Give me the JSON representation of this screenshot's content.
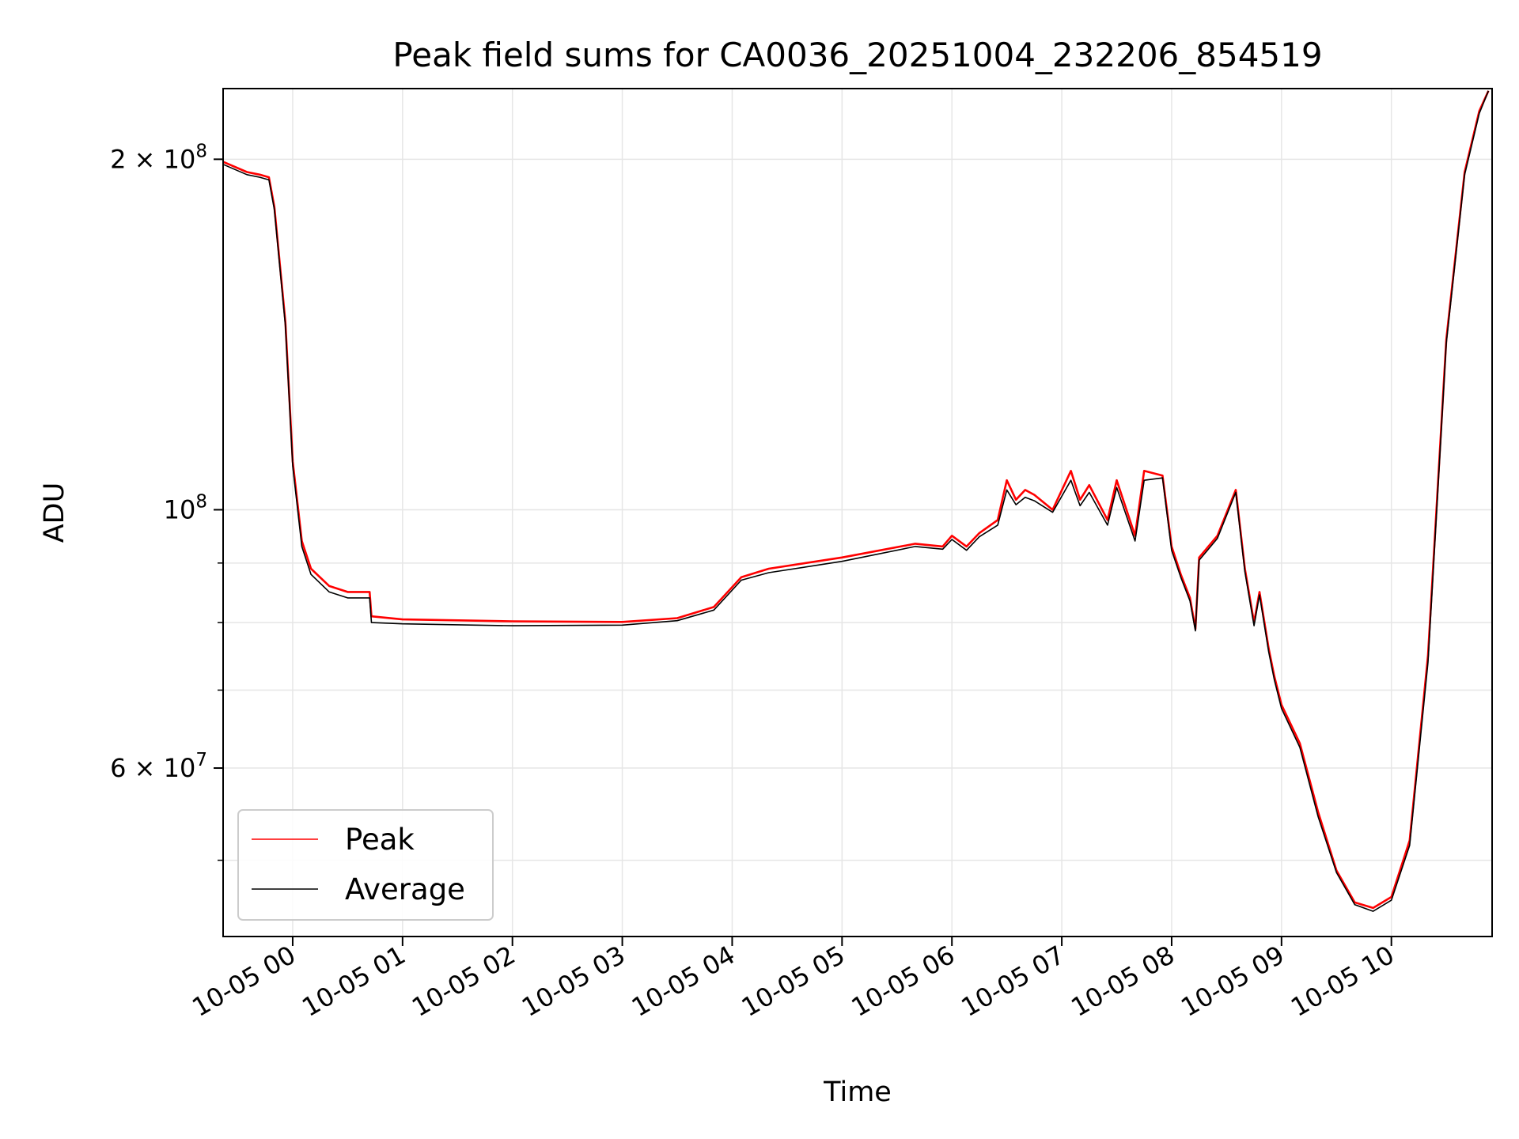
{
  "chart_data": {
    "type": "line",
    "title": "Peak field sums for CA0036_20251004_232206_854519",
    "xlabel": "Time",
    "ylabel": "ADU",
    "yscale": "log",
    "grid": true,
    "legend_position": "bottom-left",
    "xlim": [
      "2025-10-04T23:22",
      "2025-10-05T10:55"
    ],
    "ylim": [
      43000000,
      230000000
    ],
    "x_ticks": [
      {
        "t": "2025-10-05T00:00",
        "label": "10-05 00"
      },
      {
        "t": "2025-10-05T01:00",
        "label": "10-05 01"
      },
      {
        "t": "2025-10-05T02:00",
        "label": "10-05 02"
      },
      {
        "t": "2025-10-05T03:00",
        "label": "10-05 03"
      },
      {
        "t": "2025-10-05T04:00",
        "label": "10-05 04"
      },
      {
        "t": "2025-10-05T05:00",
        "label": "10-05 05"
      },
      {
        "t": "2025-10-05T06:00",
        "label": "10-05 06"
      },
      {
        "t": "2025-10-05T07:00",
        "label": "10-05 07"
      },
      {
        "t": "2025-10-05T08:00",
        "label": "10-05 08"
      },
      {
        "t": "2025-10-05T09:00",
        "label": "10-05 09"
      },
      {
        "t": "2025-10-05T10:00",
        "label": "10-05 10"
      }
    ],
    "y_major_ticks": [
      {
        "value": 200000000,
        "mant": "2",
        "exp": "8"
      },
      {
        "value": 100000000,
        "mant": "",
        "exp": "8"
      },
      {
        "value": 60000000,
        "mant": "6",
        "exp": "7"
      }
    ],
    "y_minor_ticks": [
      50000000,
      70000000,
      80000000,
      90000000
    ],
    "series": [
      {
        "name": "Peak",
        "color": "#ff0000",
        "x": [
          "2025-10-04T23:22",
          "2025-10-04T23:35",
          "2025-10-04T23:42",
          "2025-10-04T23:47",
          "2025-10-04T23:50",
          "2025-10-04T23:56",
          "2025-10-05T00:00",
          "2025-10-05T00:05",
          "2025-10-05T00:10",
          "2025-10-05T00:20",
          "2025-10-05T00:30",
          "2025-10-05T00:42",
          "2025-10-05T00:43",
          "2025-10-05T01:00",
          "2025-10-05T02:00",
          "2025-10-05T03:00",
          "2025-10-05T03:30",
          "2025-10-05T03:50",
          "2025-10-05T04:05",
          "2025-10-05T04:20",
          "2025-10-05T05:00",
          "2025-10-05T05:40",
          "2025-10-05T05:55",
          "2025-10-05T06:00",
          "2025-10-05T06:08",
          "2025-10-05T06:15",
          "2025-10-05T06:25",
          "2025-10-05T06:30",
          "2025-10-05T06:35",
          "2025-10-05T06:40",
          "2025-10-05T06:45",
          "2025-10-05T06:55",
          "2025-10-05T07:05",
          "2025-10-05T07:10",
          "2025-10-05T07:15",
          "2025-10-05T07:25",
          "2025-10-05T07:30",
          "2025-10-05T07:40",
          "2025-10-05T07:45",
          "2025-10-05T07:55",
          "2025-10-05T08:00",
          "2025-10-05T08:05",
          "2025-10-05T08:10",
          "2025-10-05T08:13",
          "2025-10-05T08:15",
          "2025-10-05T08:25",
          "2025-10-05T08:35",
          "2025-10-05T08:40",
          "2025-10-05T08:45",
          "2025-10-05T08:48",
          "2025-10-05T08:53",
          "2025-10-05T08:56",
          "2025-10-05T09:00",
          "2025-10-05T09:10",
          "2025-10-05T09:20",
          "2025-10-05T09:30",
          "2025-10-05T09:40",
          "2025-10-05T09:50",
          "2025-10-05T10:00",
          "2025-10-05T10:10",
          "2025-10-05T10:20",
          "2025-10-05T10:30",
          "2025-10-05T10:40",
          "2025-10-05T10:48",
          "2025-10-05T10:53"
        ],
        "y": [
          199000000,
          195000000,
          194000000,
          193000000,
          182000000,
          145000000,
          110000000,
          94000000,
          89000000,
          86000000,
          85000000,
          85000000,
          81000000,
          80500000,
          80200000,
          80100000,
          80700000,
          82500000,
          87500000,
          89000000,
          91000000,
          93500000,
          93000000,
          95000000,
          93000000,
          95500000,
          98000000,
          106000000,
          102000000,
          104000000,
          103000000,
          100000000,
          108000000,
          102000000,
          105000000,
          98000000,
          106000000,
          95000000,
          108000000,
          107000000,
          93000000,
          88000000,
          84000000,
          79000000,
          91000000,
          95000000,
          104000000,
          89000000,
          80000000,
          85000000,
          76000000,
          72000000,
          68000000,
          63000000,
          55000000,
          49000000,
          46000000,
          45500000,
          46500000,
          52000000,
          75000000,
          140000000,
          195000000,
          220000000,
          229000000
        ]
      },
      {
        "name": "Average",
        "color": "#000000",
        "x": [
          "2025-10-04T23:22",
          "2025-10-04T23:35",
          "2025-10-04T23:42",
          "2025-10-04T23:47",
          "2025-10-04T23:50",
          "2025-10-04T23:56",
          "2025-10-05T00:00",
          "2025-10-05T00:05",
          "2025-10-05T00:10",
          "2025-10-05T00:20",
          "2025-10-05T00:30",
          "2025-10-05T00:42",
          "2025-10-05T00:43",
          "2025-10-05T01:00",
          "2025-10-05T02:00",
          "2025-10-05T03:00",
          "2025-10-05T03:30",
          "2025-10-05T03:50",
          "2025-10-05T04:05",
          "2025-10-05T04:20",
          "2025-10-05T05:00",
          "2025-10-05T05:40",
          "2025-10-05T05:55",
          "2025-10-05T06:00",
          "2025-10-05T06:08",
          "2025-10-05T06:15",
          "2025-10-05T06:25",
          "2025-10-05T06:30",
          "2025-10-05T06:35",
          "2025-10-05T06:40",
          "2025-10-05T06:45",
          "2025-10-05T06:55",
          "2025-10-05T07:05",
          "2025-10-05T07:10",
          "2025-10-05T07:15",
          "2025-10-05T07:25",
          "2025-10-05T07:30",
          "2025-10-05T07:40",
          "2025-10-05T07:45",
          "2025-10-05T07:55",
          "2025-10-05T08:00",
          "2025-10-05T08:05",
          "2025-10-05T08:10",
          "2025-10-05T08:13",
          "2025-10-05T08:15",
          "2025-10-05T08:25",
          "2025-10-05T08:35",
          "2025-10-05T08:40",
          "2025-10-05T08:45",
          "2025-10-05T08:48",
          "2025-10-05T08:53",
          "2025-10-05T08:56",
          "2025-10-05T09:00",
          "2025-10-05T09:10",
          "2025-10-05T09:20",
          "2025-10-05T09:30",
          "2025-10-05T09:40",
          "2025-10-05T09:50",
          "2025-10-05T10:00",
          "2025-10-05T10:10",
          "2025-10-05T10:20",
          "2025-10-05T10:30",
          "2025-10-05T10:40",
          "2025-10-05T10:48",
          "2025-10-05T10:53"
        ],
        "y": [
          198000000,
          194000000,
          193000000,
          192000000,
          181000000,
          144000000,
          109000000,
          93000000,
          88000000,
          85000000,
          84000000,
          84000000,
          80000000,
          79800000,
          79500000,
          79600000,
          80300000,
          82000000,
          87000000,
          88300000,
          90300000,
          93000000,
          92500000,
          94300000,
          92300000,
          94800000,
          97000000,
          104000000,
          101000000,
          102500000,
          101800000,
          99500000,
          106000000,
          100800000,
          103500000,
          97000000,
          104500000,
          94000000,
          106000000,
          106500000,
          92300000,
          87500000,
          83500000,
          78700000,
          90500000,
          94500000,
          103500000,
          88500000,
          79500000,
          84500000,
          75500000,
          71500000,
          67500000,
          62500000,
          54500000,
          48800000,
          45800000,
          45200000,
          46200000,
          51500000,
          74000000,
          139000000,
          194000000,
          219000000,
          229000000
        ]
      }
    ]
  }
}
